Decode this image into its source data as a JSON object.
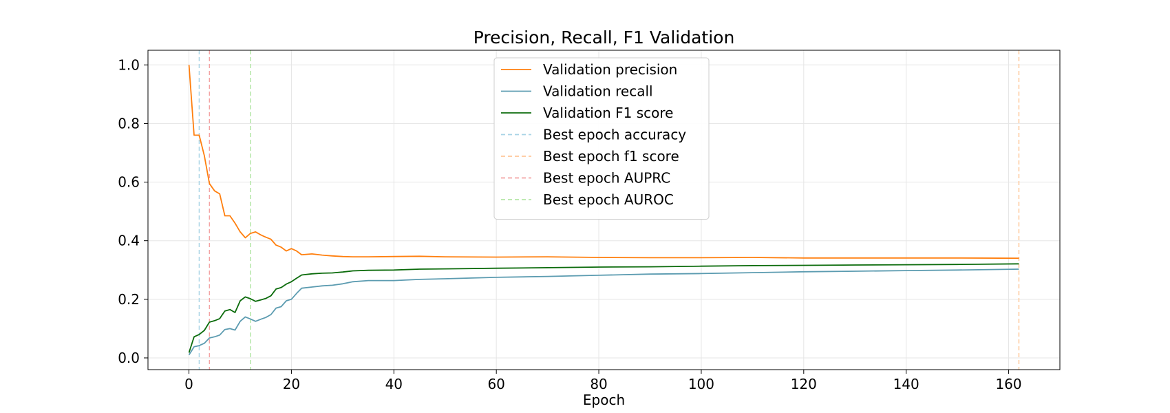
{
  "chart_data": {
    "type": "line",
    "title": "Precision, Recall, F1 Validation",
    "xlabel": "Epoch",
    "ylabel": "",
    "xlim": [
      -8,
      170
    ],
    "ylim": [
      -0.04,
      1.05
    ],
    "xticks": [
      0,
      20,
      40,
      60,
      80,
      100,
      120,
      140,
      160
    ],
    "yticks": [
      0.0,
      0.2,
      0.4,
      0.6,
      0.8,
      1.0
    ],
    "ytick_labels": [
      "0.0",
      "0.2",
      "0.4",
      "0.6",
      "0.8",
      "1.0"
    ],
    "grid": true,
    "legend_position": "top-center",
    "series": [
      {
        "name": "Validation precision",
        "color": "#ff7f0e",
        "style": "solid",
        "x": [
          0,
          1,
          2,
          3,
          4,
          5,
          6,
          7,
          8,
          9,
          10,
          11,
          12,
          13,
          14,
          15,
          16,
          17,
          18,
          19,
          20,
          21,
          22,
          24,
          26,
          28,
          30,
          32,
          35,
          40,
          45,
          50,
          60,
          70,
          80,
          90,
          100,
          110,
          120,
          130,
          140,
          150,
          162
        ],
        "y": [
          1.0,
          0.76,
          0.76,
          0.69,
          0.595,
          0.57,
          0.56,
          0.485,
          0.485,
          0.46,
          0.43,
          0.41,
          0.425,
          0.43,
          0.42,
          0.412,
          0.405,
          0.385,
          0.378,
          0.365,
          0.373,
          0.365,
          0.352,
          0.355,
          0.351,
          0.348,
          0.346,
          0.345,
          0.345,
          0.346,
          0.347,
          0.345,
          0.344,
          0.345,
          0.343,
          0.342,
          0.342,
          0.343,
          0.341,
          0.341,
          0.341,
          0.341,
          0.34
        ]
      },
      {
        "name": "Validation recall",
        "color": "#5b9bb0",
        "style": "solid",
        "x": [
          0,
          1,
          2,
          3,
          4,
          5,
          6,
          7,
          8,
          9,
          10,
          11,
          12,
          13,
          14,
          15,
          16,
          17,
          18,
          19,
          20,
          21,
          22,
          24,
          26,
          28,
          30,
          32,
          35,
          40,
          45,
          50,
          60,
          70,
          80,
          90,
          100,
          110,
          120,
          130,
          140,
          150,
          162
        ],
        "y": [
          0.01,
          0.038,
          0.042,
          0.05,
          0.068,
          0.072,
          0.078,
          0.097,
          0.1,
          0.095,
          0.125,
          0.14,
          0.133,
          0.125,
          0.132,
          0.138,
          0.148,
          0.17,
          0.175,
          0.195,
          0.2,
          0.22,
          0.238,
          0.242,
          0.246,
          0.248,
          0.253,
          0.26,
          0.264,
          0.264,
          0.268,
          0.27,
          0.275,
          0.278,
          0.282,
          0.286,
          0.288,
          0.291,
          0.294,
          0.296,
          0.298,
          0.3,
          0.303
        ]
      },
      {
        "name": "Validation F1 score",
        "color": "#0b6b0b",
        "style": "solid",
        "x": [
          0,
          1,
          2,
          3,
          4,
          5,
          6,
          7,
          8,
          9,
          10,
          11,
          12,
          13,
          14,
          15,
          16,
          17,
          18,
          19,
          20,
          21,
          22,
          24,
          26,
          28,
          30,
          32,
          35,
          40,
          45,
          50,
          60,
          70,
          80,
          90,
          100,
          110,
          120,
          130,
          140,
          150,
          162
        ],
        "y": [
          0.018,
          0.072,
          0.08,
          0.094,
          0.122,
          0.127,
          0.134,
          0.16,
          0.165,
          0.155,
          0.195,
          0.208,
          0.202,
          0.193,
          0.198,
          0.203,
          0.212,
          0.235,
          0.24,
          0.252,
          0.26,
          0.272,
          0.283,
          0.287,
          0.289,
          0.29,
          0.293,
          0.297,
          0.299,
          0.3,
          0.303,
          0.304,
          0.306,
          0.308,
          0.31,
          0.311,
          0.313,
          0.315,
          0.316,
          0.317,
          0.318,
          0.319,
          0.321
        ]
      }
    ],
    "vlines": [
      {
        "name": "Best epoch accuracy",
        "x": 2,
        "color": "#a9d4e6",
        "style": "dashed"
      },
      {
        "name": "Best epoch f1 score",
        "x": 162,
        "color": "#ffc89a",
        "style": "dashed"
      },
      {
        "name": "Best epoch AUPRC",
        "x": 4,
        "color": "#f4a3a3",
        "style": "dashed"
      },
      {
        "name": "Best epoch AUROC",
        "x": 12,
        "color": "#b5e6a8",
        "style": "dashed"
      }
    ]
  }
}
